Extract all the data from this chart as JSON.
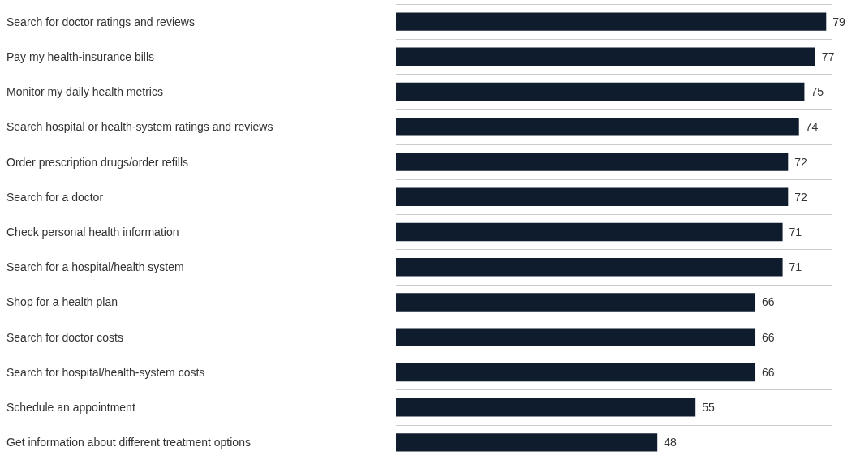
{
  "chart_data": {
    "type": "bar",
    "orientation": "horizontal",
    "categories": [
      "Search for doctor ratings and reviews",
      "Pay my health-insurance bills",
      "Monitor my daily health metrics",
      "Search hospital or health-system ratings and reviews",
      "Order prescription drugs/order refills",
      "Search for a doctor",
      "Check personal health information",
      "Search for a hospital/health system",
      "Shop for a health plan",
      "Search for doctor costs",
      "Search for hospital/health-system costs",
      "Schedule an appointment",
      "Get information about different treatment options"
    ],
    "values": [
      79,
      77,
      75,
      74,
      72,
      72,
      71,
      71,
      66,
      66,
      66,
      55,
      48
    ],
    "color": "#0f1c2e",
    "xlim": [
      0,
      80
    ],
    "data_labels": true,
    "grid": "y"
  }
}
